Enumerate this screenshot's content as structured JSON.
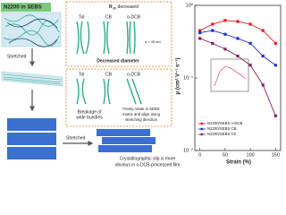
{
  "diagram": {
    "film_title": "N2200 in SEBS",
    "stretched_1": "Stretched",
    "stretched_2": "Stretched",
    "box1": {
      "r": "R",
      "r_sub": "dth",
      "r_rest": "decreased",
      "solvents": [
        "Tol",
        "CB",
        "o-DCB"
      ],
      "d_label": "d ≈ 45 nm",
      "caption": "Decreased diameter"
    },
    "box2": {
      "solvents": [
        "Tol",
        "CB",
        "o-DCB"
      ],
      "breakage": [
        "Breakage of",
        "wide bundles"
      ],
      "rotate": [
        "Freely rotate in SEBS",
        "matrix and align along",
        "stretching direction"
      ]
    },
    "slip": [
      "Crystallographic slip is more",
      "obvious in o-DCB-processed film"
    ]
  },
  "chart_data": {
    "type": "line",
    "x": [
      0,
      25,
      50,
      75,
      100,
      125,
      150
    ],
    "xlabel": "Strain (%)",
    "ylabel": "μ (cm² V⁻¹ s⁻¹)",
    "xlim": [
      -10,
      160
    ],
    "xticks": [
      0,
      50,
      100,
      150
    ],
    "ylim": [
      0.01,
      1
    ],
    "log_y": true,
    "yticks": [
      {
        "value": 0.01,
        "label": "10⁻²"
      },
      {
        "value": 0.1,
        "label": "10⁻¹"
      },
      {
        "value": 1,
        "label": "10⁰"
      }
    ],
    "series": [
      {
        "name": "N2200/SEBS o-DCB",
        "color": "#e02020",
        "values": [
          0.45,
          0.55,
          0.62,
          0.6,
          0.55,
          0.45,
          0.3
        ]
      },
      {
        "name": "N2200/SEBS CB",
        "color": "#2030d0",
        "values": [
          0.42,
          0.45,
          0.4,
          0.35,
          0.3,
          0.2,
          0.15
        ]
      },
      {
        "name": "N2200/SEBS Tol",
        "color": "#8a2060",
        "values": [
          0.35,
          0.3,
          0.25,
          0.2,
          0.15,
          0.08,
          0.03
        ]
      }
    ],
    "legend": "lower left"
  }
}
